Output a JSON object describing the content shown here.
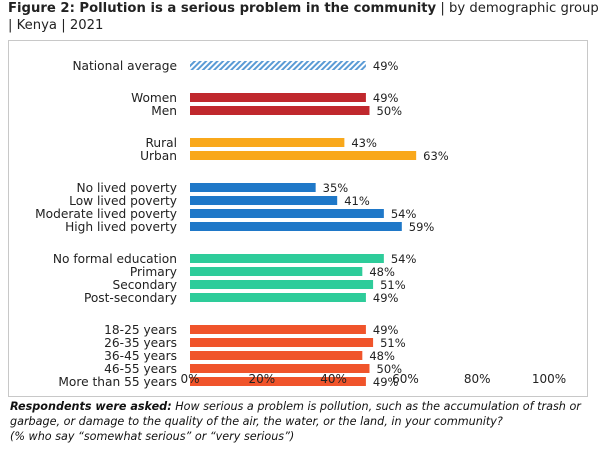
{
  "title": {
    "figure": "Figure 2: Pollution is a serious problem in the community",
    "sep1": "|",
    "subtitle_part1": "by demographic group",
    "line2_sep": "|",
    "country": "Kenya",
    "sep2": "|",
    "year": "2021"
  },
  "note": {
    "label": "Respondents were asked:",
    "question": "How serious a problem is pollution, such as the accumulation of trash or garbage, or damage to the quality of the air, the water, or the land, in your community?",
    "criteria": "(% who say “somewhat serious” or “very serious”)"
  },
  "colors": {
    "national": "#5b9bd5",
    "gender": "#c0282d",
    "location": "#f9a81b",
    "poverty": "#1f78c8",
    "education": "#2ecc9a",
    "age": "#f0542b"
  },
  "chart_data": {
    "type": "bar",
    "orientation": "horizontal",
    "title": "Pollution is a serious problem in the community",
    "xlim": [
      0,
      100
    ],
    "xticks": [
      "0%",
      "20%",
      "40%",
      "60%",
      "80%",
      "100%"
    ],
    "groups": [
      {
        "name": "national",
        "color_key": "national",
        "pattern": "hatched",
        "categories": [
          "National average"
        ],
        "values": [
          49
        ]
      },
      {
        "name": "gender",
        "color_key": "gender",
        "categories": [
          "Women",
          "Men"
        ],
        "values": [
          49,
          50
        ]
      },
      {
        "name": "location",
        "color_key": "location",
        "categories": [
          "Rural",
          "Urban"
        ],
        "values": [
          43,
          63
        ]
      },
      {
        "name": "poverty",
        "color_key": "poverty",
        "categories": [
          "No lived poverty",
          "Low lived poverty",
          "Moderate lived poverty",
          "High lived poverty"
        ],
        "values": [
          35,
          41,
          54,
          59
        ]
      },
      {
        "name": "education",
        "color_key": "education",
        "categories": [
          "No formal education",
          "Primary",
          "Secondary",
          "Post-secondary"
        ],
        "values": [
          54,
          48,
          51,
          49
        ]
      },
      {
        "name": "age",
        "color_key": "age",
        "categories": [
          "18-25 years",
          "26-35 years",
          "36-45 years",
          "46-55 years",
          "More than 55 years"
        ],
        "values": [
          49,
          51,
          48,
          50,
          49
        ]
      }
    ],
    "value_suffix": "%"
  }
}
